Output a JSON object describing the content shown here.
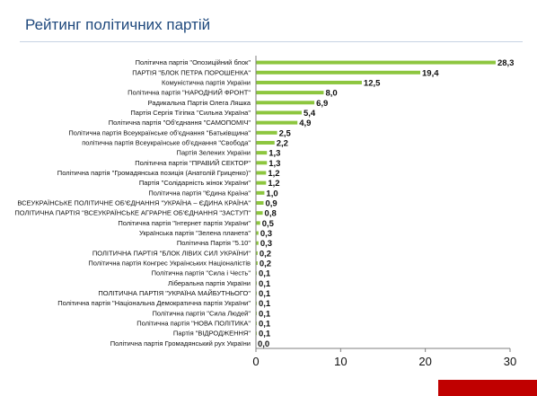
{
  "chart_data": {
    "type": "bar",
    "orientation": "horizontal",
    "title": "Рейтинг політичних партій",
    "categories": [
      "Політична партія \"Опозиційний блок\"",
      "ПАРТІЯ \"БЛОК ПЕТРА ПОРОШЕНКА\"",
      "Комуністична партія України",
      "Політична партія \"НАРОДНИЙ ФРОНТ\"",
      "Радикальна Партія Олега Ляшка",
      "Партія Сергія Тігіпка \"Сильна Україна\"",
      "Політична партія \"Об'єднання \"САМОПОМІЧ\"",
      "Політична партія Всеукраїнське об'єднання \"Батьківщина\"",
      "політична партія Всеукраїнське об'єднання \"Свобода\"",
      "Партія Зелених України",
      "Політична партія \"ПРАВИЙ СЕКТОР\"",
      "Політична партія \"Громадянська позиція (Анатолій Гриценко)\"",
      "Партія \"Солідарність жінок України\"",
      "Політична партія \"Єдина Країна\"",
      "ВСЕУКРАЇНСЬКЕ ПОЛІТИЧНЕ ОБ'ЄДНАННЯ \"УКРАЇНА – ЄДИНА КРАЇНА\"",
      "ПОЛІТИЧНА ПАРТІЯ \"ВСЕУКРАЇНСЬКЕ АГРАРНЕ ОБ'ЄДНАННЯ \"ЗАСТУП\"",
      "Політична партія \"Інтернет партія України\"",
      "Українська партія \"Зелена планета\"",
      "Політична Партія \"5.10\"",
      "ПОЛІТИЧНА ПАРТІЯ \"БЛОК ЛІВИХ СИЛ УКРАЇНИ\"",
      "Політична партія Конгрес Українських Націоналістів",
      "Політична партія \"Сила і Честь\"",
      "Ліберальна партія України",
      "ПОЛІТИЧНА ПАРТІЯ \"УКРАЇНА МАЙБУТНЬОГО\"",
      "Політична партія \"Національна Демократична партія України\"",
      "Політична партія \"Сила Людей\"",
      "Політична партія \"НОВА ПОЛІТИКА\"",
      "Партія \"ВІДРОДЖЕННЯ\"",
      "Політична партія Громадянський рух України"
    ],
    "values": [
      28.3,
      19.4,
      12.5,
      8.0,
      6.9,
      5.4,
      4.9,
      2.5,
      2.2,
      1.3,
      1.3,
      1.2,
      1.2,
      1.0,
      0.9,
      0.8,
      0.5,
      0.3,
      0.3,
      0.2,
      0.2,
      0.1,
      0.1,
      0.1,
      0.1,
      0.1,
      0.1,
      0.1,
      0.0
    ],
    "value_labels": [
      "28,3",
      "19,4",
      "12,5",
      "8,0",
      "6,9",
      "5,4",
      "4,9",
      "2,5",
      "2,2",
      "1,3",
      "1,3",
      "1,2",
      "1,2",
      "1,0",
      "0,9",
      "0,8",
      "0,5",
      "0,3",
      "0,3",
      "0,2",
      "0,2",
      "0,1",
      "0,1",
      "0,1",
      "0,1",
      "0,1",
      "0,1",
      "0,1",
      "0,0"
    ],
    "x_ticks": [
      "0",
      "10",
      "20",
      "30"
    ],
    "xlim": [
      0,
      30
    ],
    "bar_color": "#8dc63f",
    "grid": false,
    "legend": "none"
  }
}
